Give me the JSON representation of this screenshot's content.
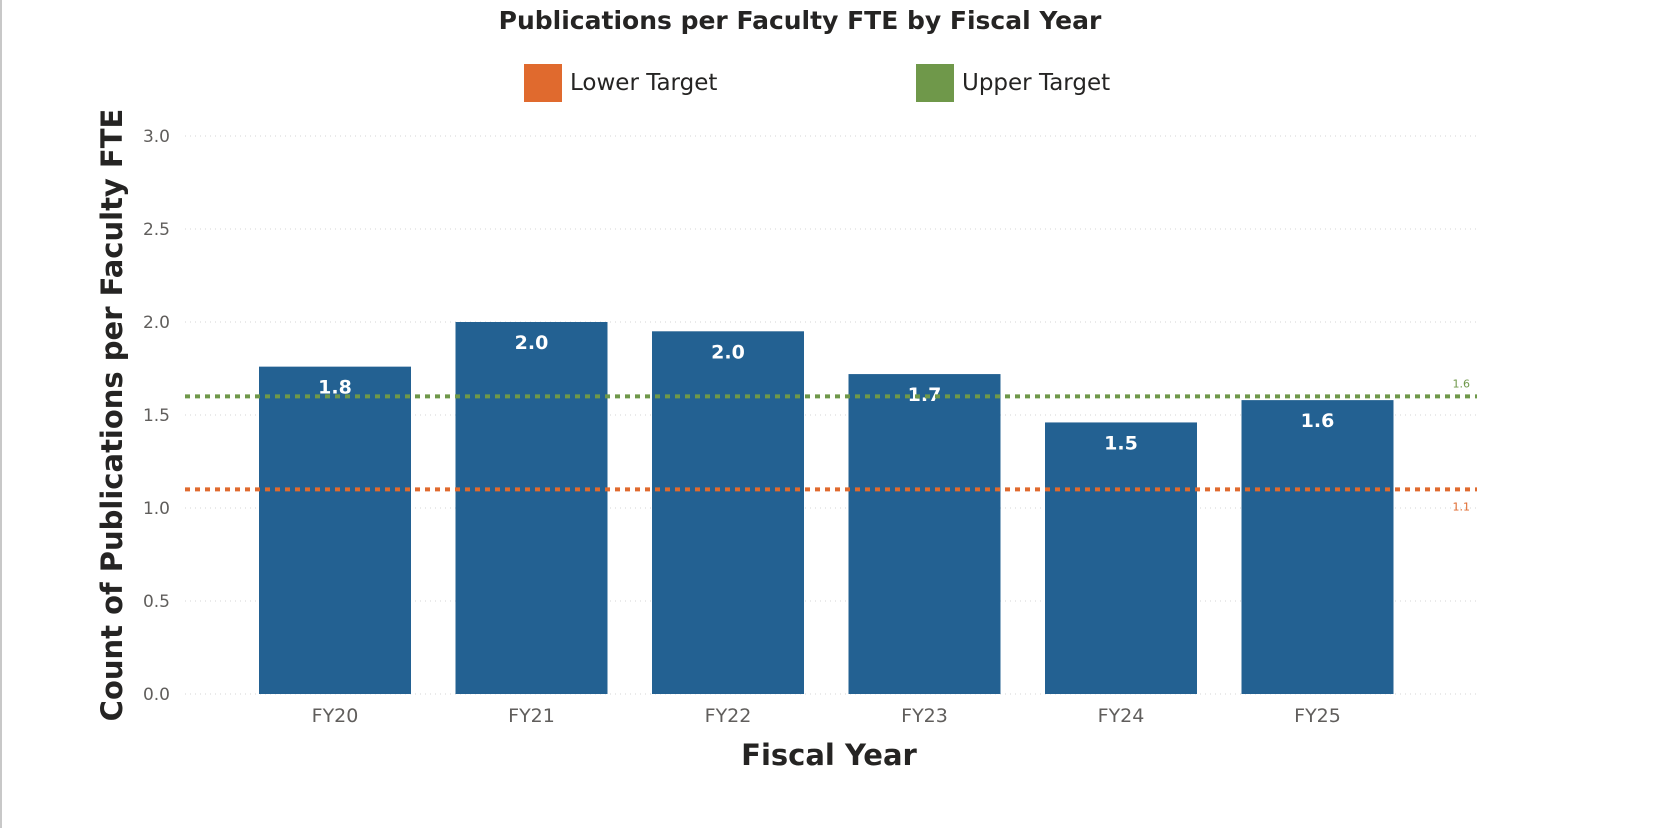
{
  "chart_data": {
    "type": "bar",
    "title": "Publications per Faculty FTE by Fiscal Year",
    "xlabel": "Fiscal Year",
    "ylabel": "Count of Publications per Faculty FTE",
    "categories": [
      "FY20",
      "FY21",
      "FY22",
      "FY23",
      "FY24",
      "FY25"
    ],
    "values": [
      1.76,
      2.0,
      1.95,
      1.72,
      1.46,
      1.58
    ],
    "data_labels": [
      "1.8",
      "2.0",
      "2.0",
      "1.7",
      "1.5",
      "1.6"
    ],
    "ylim": [
      0,
      3.0
    ],
    "yticks": [
      "0.0",
      "0.5",
      "1.0",
      "1.5",
      "2.0",
      "2.5",
      "3.0"
    ],
    "grid": true,
    "bar_color": "#236192",
    "reference_lines": [
      {
        "name": "Lower Target",
        "value": 1.1,
        "label": "1.1",
        "color": "#E06A2E"
      },
      {
        "name": "Upper Target",
        "value": 1.6,
        "label": "1.6",
        "color": "#6F984A"
      }
    ],
    "legend": {
      "placement": "top",
      "entries": [
        "Lower Target",
        "Upper Target"
      ]
    }
  }
}
